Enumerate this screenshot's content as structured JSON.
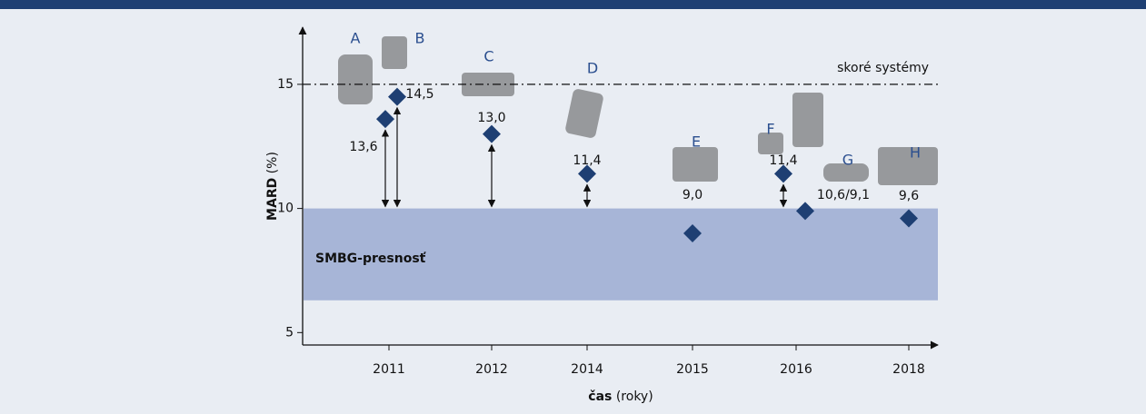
{
  "chart_data": {
    "type": "scatter",
    "y_label_bold": "MARD",
    "y_label_unit": "(%)",
    "x_label_bold": "čas",
    "x_label_unit": "(roky)",
    "categories": [
      "2011",
      "2012",
      "2014",
      "2015",
      "2016",
      "2018"
    ],
    "ylim": [
      4.5,
      17.3
    ],
    "yticks": [
      5,
      10,
      15
    ],
    "color": "#1e3f73",
    "reference_line": {
      "label": "skoré systémy",
      "value": 15
    },
    "band": {
      "label": "SMBG-presnosť",
      "from": 6.3,
      "to": 10,
      "color": "#a7b5d7"
    },
    "points": [
      {
        "name": "A",
        "x": "2011",
        "value": 13.6,
        "value_label": "13,6"
      },
      {
        "name": "B",
        "x": "2011",
        "value": 14.5,
        "value_label": "14,5"
      },
      {
        "name": "C",
        "x": "2012",
        "value": 13.0,
        "value_label": "13,0"
      },
      {
        "name": "D",
        "x": "2014",
        "value": 11.4,
        "value_label": "11,4"
      },
      {
        "name": "E",
        "x": "2015",
        "value": 9.0,
        "value_label": "9,0"
      },
      {
        "name": "F",
        "x": "2016",
        "value": 11.4,
        "value_label": "11,4"
      },
      {
        "name": "G",
        "x": "2016",
        "value": 9.9,
        "annotation": "10,6/9,1"
      },
      {
        "name": "H",
        "x": "2018",
        "value": 9.6,
        "value_label": "9,6"
      }
    ]
  }
}
